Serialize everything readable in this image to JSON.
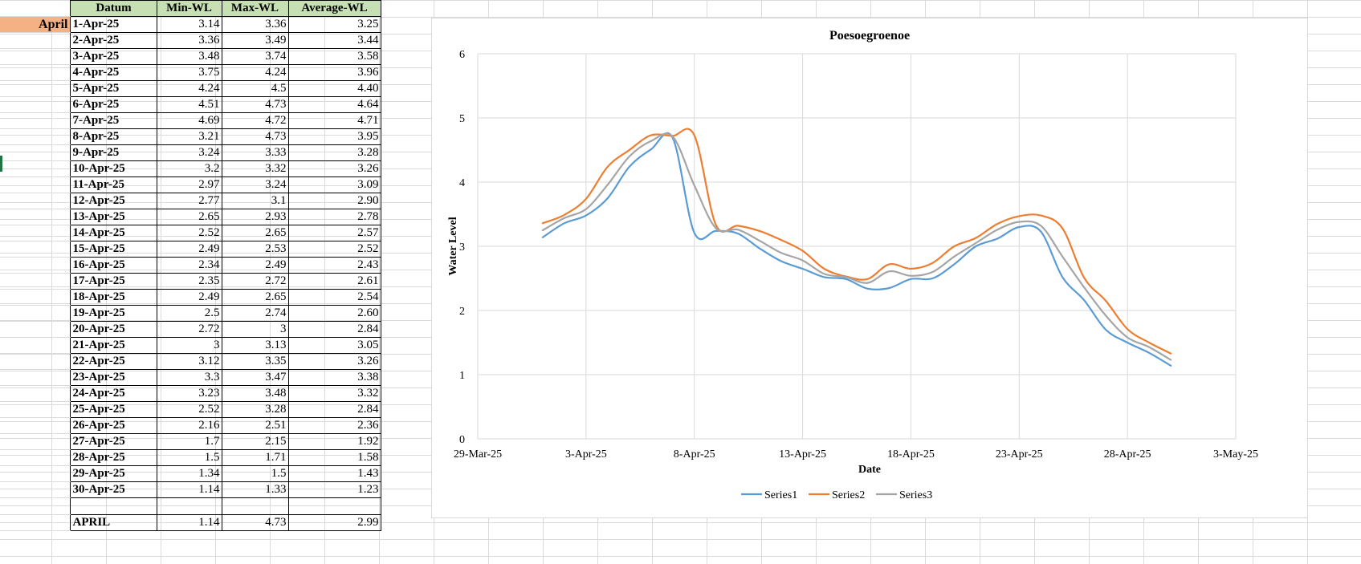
{
  "sheet": {
    "month_label": "April",
    "headers": [
      "Datum",
      "Min-WL",
      "Max-WL",
      "Average-WL"
    ],
    "rows": [
      [
        "1-Apr-25",
        "3.14",
        "3.36",
        "3.25"
      ],
      [
        "2-Apr-25",
        "3.36",
        "3.49",
        "3.44"
      ],
      [
        "3-Apr-25",
        "3.48",
        "3.74",
        "3.58"
      ],
      [
        "4-Apr-25",
        "3.75",
        "4.24",
        "3.96"
      ],
      [
        "5-Apr-25",
        "4.24",
        "4.5",
        "4.40"
      ],
      [
        "6-Apr-25",
        "4.51",
        "4.73",
        "4.64"
      ],
      [
        "7-Apr-25",
        "4.69",
        "4.72",
        "4.71"
      ],
      [
        "8-Apr-25",
        "3.21",
        "4.73",
        "3.95"
      ],
      [
        "9-Apr-25",
        "3.24",
        "3.33",
        "3.28"
      ],
      [
        "10-Apr-25",
        "3.2",
        "3.32",
        "3.26"
      ],
      [
        "11-Apr-25",
        "2.97",
        "3.24",
        "3.09"
      ],
      [
        "12-Apr-25",
        "2.77",
        "3.1",
        "2.90"
      ],
      [
        "13-Apr-25",
        "2.65",
        "2.93",
        "2.78"
      ],
      [
        "14-Apr-25",
        "2.52",
        "2.65",
        "2.57"
      ],
      [
        "15-Apr-25",
        "2.49",
        "2.53",
        "2.52"
      ],
      [
        "16-Apr-25",
        "2.34",
        "2.49",
        "2.43"
      ],
      [
        "17-Apr-25",
        "2.35",
        "2.72",
        "2.61"
      ],
      [
        "18-Apr-25",
        "2.49",
        "2.65",
        "2.54"
      ],
      [
        "19-Apr-25",
        "2.5",
        "2.74",
        "2.60"
      ],
      [
        "20-Apr-25",
        "2.72",
        "3",
        "2.84"
      ],
      [
        "21-Apr-25",
        "3",
        "3.13",
        "3.05"
      ],
      [
        "22-Apr-25",
        "3.12",
        "3.35",
        "3.26"
      ],
      [
        "23-Apr-25",
        "3.3",
        "3.47",
        "3.38"
      ],
      [
        "24-Apr-25",
        "3.23",
        "3.48",
        "3.32"
      ],
      [
        "25-Apr-25",
        "2.52",
        "3.28",
        "2.84"
      ],
      [
        "26-Apr-25",
        "2.16",
        "2.51",
        "2.36"
      ],
      [
        "27-Apr-25",
        "1.7",
        "2.15",
        "1.92"
      ],
      [
        "28-Apr-25",
        "1.5",
        "1.71",
        "1.58"
      ],
      [
        "29-Apr-25",
        "1.34",
        "1.5",
        "1.43"
      ],
      [
        "30-Apr-25",
        "1.14",
        "1.33",
        "1.23"
      ]
    ],
    "summary": [
      "APRIL",
      "1.14",
      "4.73",
      "2.99"
    ]
  },
  "colors": {
    "header_fill": "#c6e0b4",
    "month_fill": "#f4b183",
    "series1": "#5b9bd5",
    "series2": "#ed7d31",
    "series3": "#a5a5a5",
    "gridline": "#d9d9d9"
  },
  "chart_data": {
    "type": "line",
    "title": "Poesoegroenoe",
    "xlabel": "Date",
    "ylabel": "Water Level",
    "ylim": [
      0,
      6
    ],
    "yticks": [
      "0",
      "1",
      "2",
      "3",
      "4",
      "5",
      "6"
    ],
    "xlim": [
      "2025-03-29",
      "2025-05-03"
    ],
    "xticks": [
      "29-Mar-25",
      "3-Apr-25",
      "8-Apr-25",
      "13-Apr-25",
      "18-Apr-25",
      "23-Apr-25",
      "28-Apr-25",
      "3-May-25"
    ],
    "x": [
      "2025-04-01",
      "2025-04-02",
      "2025-04-03",
      "2025-04-04",
      "2025-04-05",
      "2025-04-06",
      "2025-04-07",
      "2025-04-08",
      "2025-04-09",
      "2025-04-10",
      "2025-04-11",
      "2025-04-12",
      "2025-04-13",
      "2025-04-14",
      "2025-04-15",
      "2025-04-16",
      "2025-04-17",
      "2025-04-18",
      "2025-04-19",
      "2025-04-20",
      "2025-04-21",
      "2025-04-22",
      "2025-04-23",
      "2025-04-24",
      "2025-04-25",
      "2025-04-26",
      "2025-04-27",
      "2025-04-28",
      "2025-04-29",
      "2025-04-30"
    ],
    "series": [
      {
        "name": "Series1",
        "values": [
          3.14,
          3.36,
          3.48,
          3.75,
          4.24,
          4.51,
          4.69,
          3.21,
          3.24,
          3.2,
          2.97,
          2.77,
          2.65,
          2.52,
          2.49,
          2.34,
          2.35,
          2.49,
          2.5,
          2.72,
          3,
          3.12,
          3.3,
          3.23,
          2.52,
          2.16,
          1.7,
          1.5,
          1.34,
          1.14
        ]
      },
      {
        "name": "Series2",
        "values": [
          3.36,
          3.49,
          3.74,
          4.24,
          4.5,
          4.73,
          4.72,
          4.73,
          3.33,
          3.32,
          3.24,
          3.1,
          2.93,
          2.65,
          2.53,
          2.49,
          2.72,
          2.65,
          2.74,
          3,
          3.13,
          3.35,
          3.47,
          3.48,
          3.28,
          2.51,
          2.15,
          1.71,
          1.5,
          1.33
        ]
      },
      {
        "name": "Series3",
        "values": [
          3.25,
          3.44,
          3.58,
          3.96,
          4.4,
          4.64,
          4.71,
          3.95,
          3.28,
          3.26,
          3.09,
          2.9,
          2.78,
          2.57,
          2.52,
          2.43,
          2.61,
          2.54,
          2.6,
          2.84,
          3.05,
          3.26,
          3.38,
          3.32,
          2.84,
          2.36,
          1.92,
          1.58,
          1.43,
          1.23
        ]
      }
    ],
    "grid": true,
    "legend": "bottom"
  }
}
